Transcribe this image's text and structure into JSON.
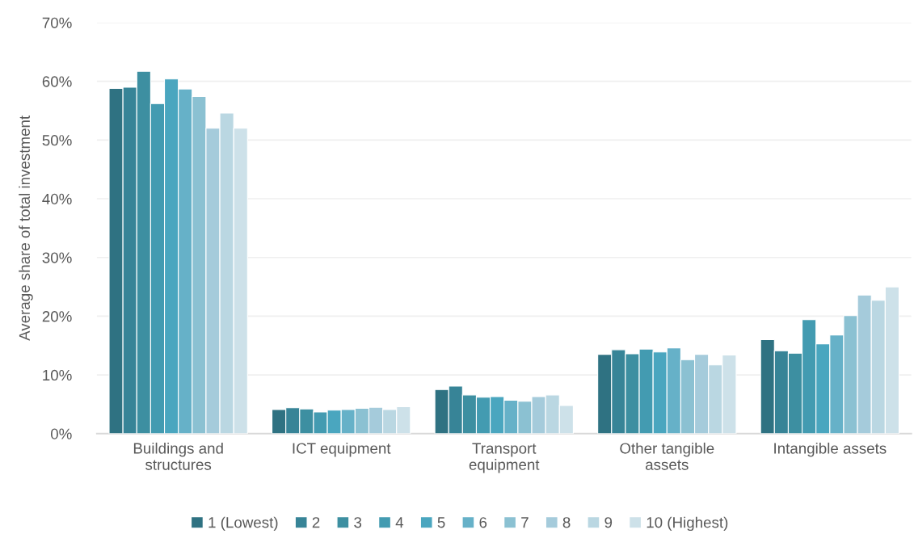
{
  "chart_data": {
    "type": "bar",
    "ylabel": "Average share of total investment",
    "categories": [
      "Buildings and\nstructures",
      "ICT equipment",
      "Transport\nequipment",
      "Other tangible\nassets",
      "Intangible assets"
    ],
    "series": [
      {
        "name": "1 (Lowest)",
        "color": "#2f7282",
        "values": [
          58.8,
          4.1,
          7.5,
          13.5,
          16.0
        ]
      },
      {
        "name": "2",
        "color": "#378497",
        "values": [
          59.0,
          4.4,
          8.1,
          14.3,
          14.1
        ]
      },
      {
        "name": "3",
        "color": "#3d8fa1",
        "values": [
          61.7,
          4.2,
          6.6,
          13.6,
          13.7
        ]
      },
      {
        "name": "4",
        "color": "#439bb1",
        "values": [
          56.2,
          3.7,
          6.2,
          14.4,
          19.4
        ]
      },
      {
        "name": "5",
        "color": "#4aa6bf",
        "values": [
          60.4,
          4.0,
          6.3,
          13.9,
          15.3
        ]
      },
      {
        "name": "6",
        "color": "#66b1c8",
        "values": [
          58.7,
          4.1,
          5.7,
          14.6,
          16.8
        ]
      },
      {
        "name": "7",
        "color": "#8bc1d2",
        "values": [
          57.4,
          4.3,
          5.5,
          12.6,
          20.1
        ]
      },
      {
        "name": "8",
        "color": "#a5cbdb",
        "values": [
          52.0,
          4.5,
          6.3,
          13.5,
          23.6
        ]
      },
      {
        "name": "9",
        "color": "#bad7e2",
        "values": [
          54.6,
          4.1,
          6.6,
          11.7,
          22.7
        ]
      },
      {
        "name": "10 (Highest)",
        "color": "#cde1e9",
        "values": [
          52.0,
          4.6,
          4.8,
          13.4,
          25.0
        ]
      }
    ],
    "ylim": [
      0,
      70
    ],
    "yticks": [
      {
        "value": 0,
        "label": "0%"
      },
      {
        "value": 10,
        "label": "10%"
      },
      {
        "value": 20,
        "label": "20%"
      },
      {
        "value": 30,
        "label": "30%"
      },
      {
        "value": 40,
        "label": "40%"
      },
      {
        "value": 50,
        "label": "50%"
      },
      {
        "value": 60,
        "label": "60%"
      },
      {
        "value": 70,
        "label": "70%"
      }
    ],
    "grid": "y",
    "legend": "bottom"
  }
}
